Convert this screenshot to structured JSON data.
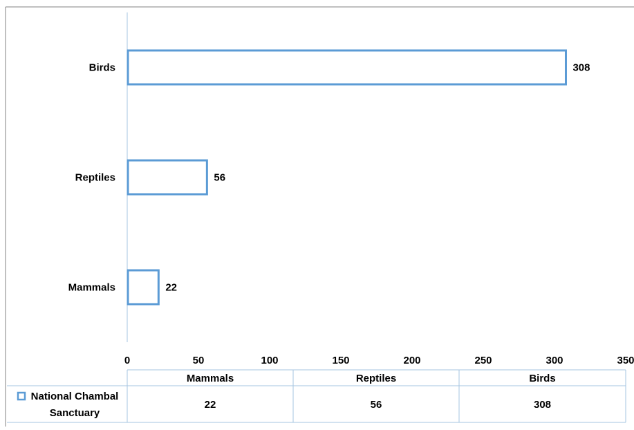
{
  "chart_data": {
    "type": "bar",
    "orientation": "horizontal",
    "categories": [
      "Mammals",
      "Reptiles",
      "Birds"
    ],
    "series": [
      {
        "name": "National Chambal Sanctuary",
        "values": [
          22,
          56,
          308
        ]
      }
    ],
    "xlim": [
      0,
      350
    ],
    "xticks": [
      0,
      50,
      100,
      150,
      200,
      250,
      300,
      350
    ],
    "data_labels": true,
    "grid": false,
    "data_table": true,
    "legend": "in-data-table",
    "colors": {
      "bar_edge": "#5b9bd5",
      "bar_fill": "#ffffff",
      "axis": "#a6c4e0"
    }
  },
  "table": {
    "series_label_line1": "National Chambal",
    "series_label_line2": "Sanctuary"
  }
}
